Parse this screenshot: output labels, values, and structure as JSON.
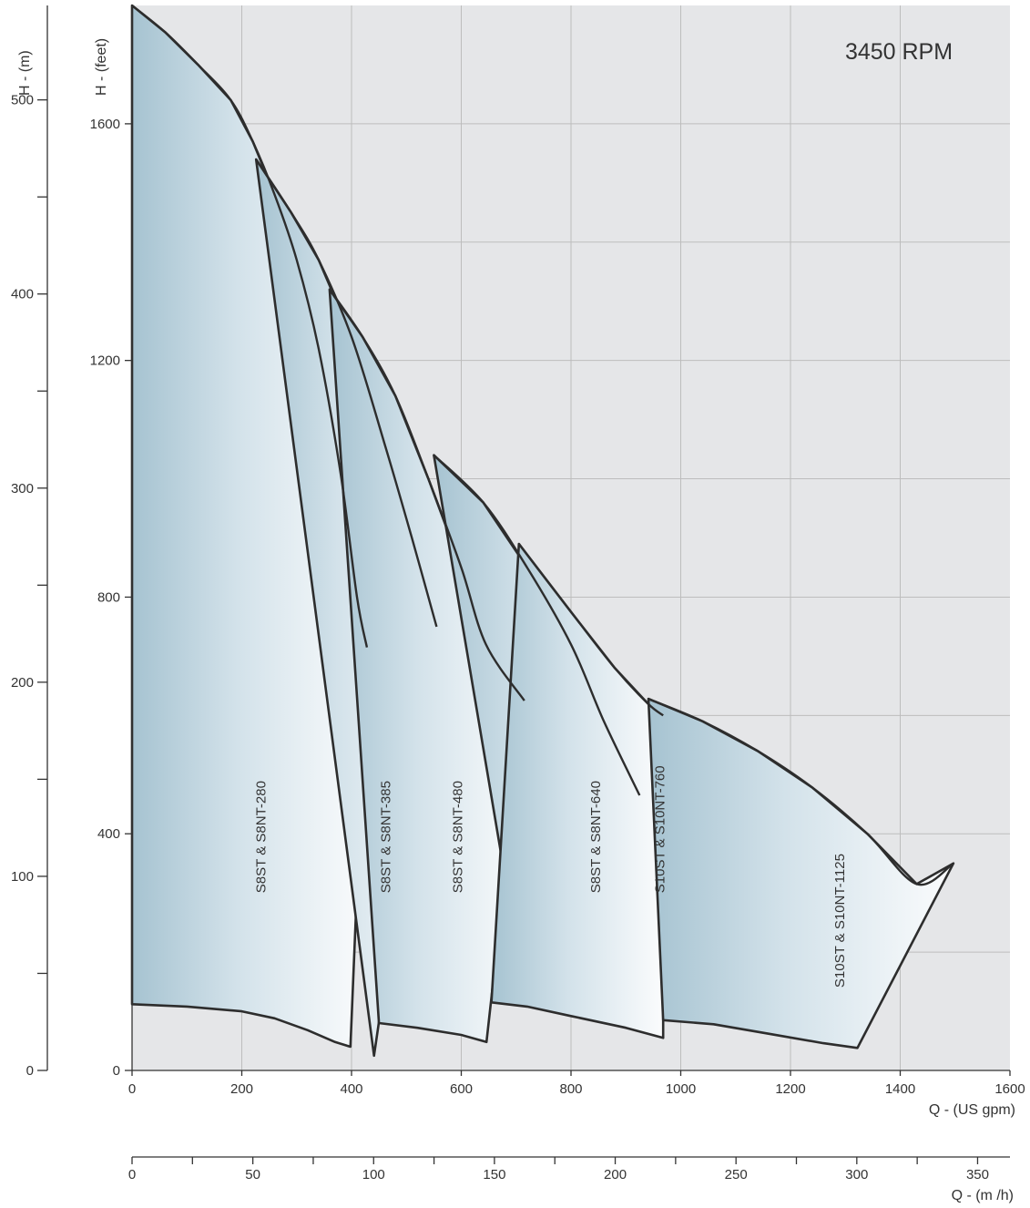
{
  "chart_data": {
    "type": "area",
    "annotation": "3450 RPM",
    "xlabel": "Q - (US gpm)",
    "xlabel2": "Q - (m /h)",
    "ylabel": "H - (feet)",
    "ylabel2": "H - (m)",
    "xlim": [
      0,
      1600
    ],
    "ylim": [
      0,
      1800
    ],
    "x_ticks": [
      "0",
      "200",
      "400",
      "600",
      "800",
      "1000",
      "1200",
      "1400",
      "1600"
    ],
    "y_ticks": [
      "0",
      "400",
      "800",
      "1200",
      "1600"
    ],
    "y2_ticks": [
      "0",
      "100",
      "200",
      "300",
      "400",
      "500"
    ],
    "x2_ticks": [
      "0",
      "50",
      "100",
      "150",
      "200",
      "250",
      "300",
      "350"
    ],
    "grid": true,
    "colors": {
      "fill_dark": "#a6c3d1",
      "fill_light": "#fbfcfd",
      "background": "#e5e6e8",
      "line": "#2d2d2d"
    },
    "series": [
      {
        "name": "S8ST & S8NT-280",
        "top": [
          [
            0,
            1800
          ],
          [
            60,
            1755
          ],
          [
            120,
            1700
          ],
          [
            180,
            1640
          ],
          [
            220,
            1570
          ],
          [
            260,
            1480
          ],
          [
            300,
            1370
          ],
          [
            340,
            1220
          ],
          [
            380,
            1010
          ],
          [
            410,
            800
          ],
          [
            428,
            715
          ]
        ],
        "right": [
          [
            428,
            715
          ],
          [
            398,
            40
          ]
        ],
        "bottom": [
          [
            0,
            112
          ],
          [
            100,
            108
          ],
          [
            200,
            100
          ],
          [
            260,
            88
          ],
          [
            320,
            68
          ],
          [
            370,
            48
          ],
          [
            398,
            40
          ]
        ]
      },
      {
        "name": "S8ST & S8NT-385",
        "top": [
          [
            226,
            1540
          ],
          [
            290,
            1450
          ],
          [
            340,
            1370
          ],
          [
            400,
            1240
          ],
          [
            460,
            1060
          ],
          [
            510,
            900
          ],
          [
            555,
            750
          ]
        ],
        "right": [
          [
            555,
            750
          ],
          [
            441,
            25
          ]
        ],
        "bottom": [
          [
            441,
            25
          ],
          [
            450,
            80
          ]
        ]
      },
      {
        "name": "S8ST & S8NT-480",
        "top": [
          [
            360,
            1320
          ],
          [
            420,
            1240
          ],
          [
            480,
            1140
          ],
          [
            540,
            1000
          ],
          [
            600,
            850
          ],
          [
            645,
            720
          ],
          [
            715,
            625
          ]
        ],
        "right": [
          [
            715,
            625
          ],
          [
            646,
            48
          ]
        ],
        "bottom": [
          [
            450,
            80
          ],
          [
            520,
            72
          ],
          [
            600,
            60
          ],
          [
            646,
            48
          ]
        ]
      },
      {
        "name": "S8ST & S8NT-640",
        "top": [
          [
            550,
            1040
          ],
          [
            640,
            960
          ],
          [
            720,
            850
          ],
          [
            800,
            720
          ],
          [
            860,
            590
          ],
          [
            925,
            465
          ]
        ],
        "right": [
          [
            925,
            465
          ],
          [
            925,
            160
          ]
        ],
        "bottom": [
          [
            680,
            325
          ],
          [
            750,
            285
          ],
          [
            820,
            240
          ],
          [
            880,
            200
          ],
          [
            925,
            160
          ]
        ]
      },
      {
        "name": "S10ST & S10NT-760",
        "top": [
          [
            705,
            890
          ],
          [
            800,
            775
          ],
          [
            880,
            680
          ],
          [
            940,
            620
          ],
          [
            968,
            600
          ]
        ],
        "right": [
          [
            968,
            600
          ],
          [
            968,
            55
          ]
        ],
        "bottom": [
          [
            655,
            115
          ],
          [
            720,
            108
          ],
          [
            800,
            92
          ],
          [
            900,
            72
          ],
          [
            968,
            55
          ]
        ]
      },
      {
        "name": "S10ST & S10NT-1125",
        "top": [
          [
            941,
            628
          ],
          [
            1040,
            590
          ],
          [
            1140,
            540
          ],
          [
            1240,
            478
          ],
          [
            1340,
            400
          ],
          [
            1430,
            315
          ],
          [
            1497,
            350
          ]
        ],
        "right": [
          [
            1497,
            350
          ],
          [
            1322,
            38
          ]
        ],
        "bottom": [
          [
            968,
            85
          ],
          [
            1060,
            78
          ],
          [
            1160,
            62
          ],
          [
            1260,
            46
          ],
          [
            1322,
            38
          ]
        ]
      }
    ],
    "label_positions_in_data_units": [
      {
        "name": "S8ST & S8NT-280",
        "x": 235,
        "y": 300
      },
      {
        "name": "S8ST & S8NT-385",
        "x": 462,
        "y": 300
      },
      {
        "name": "S8ST & S8NT-480",
        "x": 593,
        "y": 300
      },
      {
        "name": "S8ST & S8NT-640",
        "x": 845,
        "y": 300
      },
      {
        "name": "S10ST & S10NT-760",
        "x": 962,
        "y": 300
      },
      {
        "name": "S10ST & S10NT-1125",
        "x": 1290,
        "y": 140
      }
    ]
  }
}
